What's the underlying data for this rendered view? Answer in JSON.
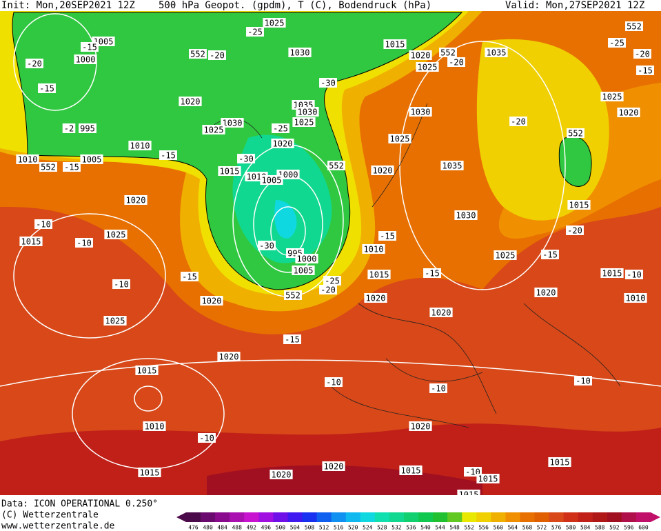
{
  "header": {
    "init": "Init: Mon,20SEP2021 12Z",
    "fields": "500 hPa Geopot. (gpdm), T (C), Bodendruck (hPa)",
    "valid": "Valid: Mon,27SEP2021 12Z"
  },
  "footer": {
    "data": "Data: ICON OPERATIONAL 0.250°",
    "copyright": "(C) Wetterzentrale",
    "url": "www.wetterzentrale.de"
  },
  "map": {
    "labels": [
      "1025",
      "-25",
      "1005",
      "-15",
      "1000",
      "-20",
      "552",
      "-20",
      "1030",
      "1015",
      "1020",
      "552",
      "-20",
      "1025",
      "1035",
      "552",
      "-25",
      "-20",
      "-15",
      "-15",
      "1020",
      "-30",
      "1025",
      "1035",
      "1030",
      "1030",
      "1020",
      "-20",
      "1025",
      "1030",
      "-25",
      "-2",
      "995",
      "1025",
      "1025",
      "552",
      "1010",
      "1020",
      "-15",
      "1010",
      "1005",
      "-30",
      "552",
      "552",
      "-15",
      "1035",
      "1020",
      "1015",
      "1000",
      "1010",
      "1005",
      "1020",
      "1015",
      "1030",
      "-10",
      "-20",
      "1025",
      "-15",
      "1015",
      "-10",
      "-30",
      "1010",
      "995",
      "1025",
      "-15",
      "1000",
      "1005",
      "1015",
      "-15",
      "1015",
      "-10",
      "-15",
      "-25",
      "-20",
      "552",
      "-10",
      "1020",
      "1020",
      "1020",
      "1010",
      "1020",
      "1025",
      "-15",
      "1020",
      "1015",
      "-10",
      "-10",
      "-10",
      "1010",
      "1020",
      "-10",
      "1015",
      "1020",
      "1015",
      "-10",
      "1015",
      "1020",
      "1015",
      "1015"
    ]
  },
  "colorbar": {
    "levels": [
      476,
      480,
      484,
      488,
      492,
      496,
      500,
      504,
      508,
      512,
      516,
      520,
      524,
      528,
      532,
      536,
      540,
      544,
      548,
      552,
      556,
      560,
      564,
      568,
      572,
      576,
      580,
      584,
      588,
      592,
      596,
      600
    ],
    "colors": [
      "#4b0a4a",
      "#6a0a6e",
      "#8a0a8e",
      "#aa10b0",
      "#c814d0",
      "#a010e0",
      "#7010e8",
      "#4018f0",
      "#1830f0",
      "#1060f0",
      "#1090f0",
      "#10b8f0",
      "#10d8e0",
      "#10e0b0",
      "#10d890",
      "#10d070",
      "#10c850",
      "#20c030",
      "#60c820",
      "#e8e800",
      "#f0d000",
      "#f0b000",
      "#f09000",
      "#e87000",
      "#e06000",
      "#d84818",
      "#d03018",
      "#c02018",
      "#b01818",
      "#a01020",
      "#b0104a",
      "#c0106a"
    ]
  }
}
